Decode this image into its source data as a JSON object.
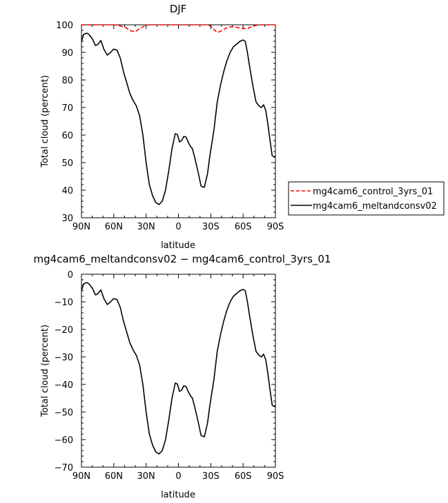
{
  "chart_data": [
    {
      "type": "line",
      "title": "DJF",
      "xlabel": "latitude",
      "ylabel": "Total cloud (percent)",
      "xlim": [
        90,
        -90
      ],
      "ylim": [
        30,
        100
      ],
      "x_tick_values": [
        90,
        60,
        30,
        0,
        -30,
        -60,
        -90
      ],
      "x_tick_labels": [
        "90N",
        "60N",
        "30N",
        "0",
        "30S",
        "60S",
        "90S"
      ],
      "y_ticks": [
        30,
        40,
        50,
        60,
        70,
        80,
        90,
        100
      ],
      "legend_position": "right",
      "series": [
        {
          "name": "mg4cam6_control_3yrs_01",
          "color": "#ff0000",
          "dash": "dashed",
          "x": [
            90,
            60,
            54,
            49,
            44,
            40,
            36,
            30,
            25,
            0,
            -25,
            -30,
            -33,
            -36,
            -40,
            -45,
            -50,
            -55,
            -60,
            -65,
            -70,
            -75,
            -90
          ],
          "y": [
            100,
            100,
            99.6,
            99.0,
            97.8,
            97.5,
            98.6,
            99.9,
            100,
            100,
            100,
            99.6,
            98.3,
            97.2,
            97.8,
            99.0,
            99.3,
            99.0,
            98.6,
            98.8,
            99.6,
            100,
            100
          ]
        },
        {
          "name": "mg4cam6_meltandconsv02",
          "color": "#000000",
          "dash": "solid",
          "x": [
            90,
            88,
            85,
            83,
            80,
            77,
            75,
            72,
            69,
            66,
            63,
            60,
            57,
            54,
            51,
            48,
            45,
            42,
            39,
            36,
            33,
            30,
            27,
            24,
            21,
            18,
            15,
            12,
            9,
            6,
            3,
            1,
            -1,
            -3,
            -5,
            -7,
            -9,
            -11,
            -13,
            -15,
            -18,
            -21,
            -24,
            -27,
            -29,
            -31,
            -33,
            -36,
            -39,
            -42,
            -45,
            -48,
            -51,
            -54,
            -57,
            -60,
            -62,
            -64,
            -66,
            -69,
            -72,
            -75,
            -77,
            -79,
            -81,
            -83,
            -85,
            -87,
            -89,
            -90
          ],
          "y": [
            94.0,
            96.5,
            97.0,
            96.5,
            95.0,
            92.5,
            92.8,
            94.3,
            91.0,
            89.0,
            90.0,
            91.2,
            90.8,
            88.0,
            83.0,
            79.0,
            75.0,
            72.5,
            70.5,
            67.0,
            60.0,
            50.0,
            42.0,
            38.0,
            35.5,
            34.8,
            36.0,
            40.0,
            47.0,
            55.0,
            60.5,
            60.2,
            57.5,
            58.0,
            59.5,
            59.3,
            57.5,
            56.0,
            55.0,
            52.0,
            47.0,
            41.5,
            41.0,
            46.0,
            52.0,
            57.0,
            62.0,
            72.0,
            78.0,
            83.0,
            87.0,
            90.0,
            92.0,
            93.0,
            94.0,
            94.5,
            94.0,
            90.0,
            85.0,
            78.0,
            72.0,
            70.5,
            70.0,
            71.0,
            69.0,
            64.0,
            58.0,
            52.5,
            52.0,
            52.5
          ]
        }
      ]
    },
    {
      "type": "line",
      "title": "mg4cam6_meltandconsv02 − mg4cam6_control_3yrs_01",
      "xlabel": "latitude",
      "ylabel": "Total cloud (percent)",
      "xlim": [
        90,
        -90
      ],
      "ylim": [
        -70,
        0
      ],
      "x_tick_values": [
        90,
        60,
        30,
        0,
        -30,
        -60,
        -90
      ],
      "x_tick_labels": [
        "90N",
        "60N",
        "30N",
        "0",
        "30S",
        "60S",
        "90S"
      ],
      "y_ticks": [
        -70,
        -60,
        -50,
        -40,
        -30,
        -20,
        -10,
        0
      ],
      "series": [
        {
          "color": "#000000",
          "dash": "solid",
          "x": [
            90,
            88,
            85,
            83,
            80,
            77,
            75,
            72,
            69,
            66,
            63,
            60,
            57,
            54,
            51,
            48,
            45,
            42,
            39,
            36,
            33,
            30,
            27,
            24,
            21,
            18,
            15,
            12,
            9,
            6,
            3,
            1,
            -1,
            -3,
            -5,
            -7,
            -9,
            -11,
            -13,
            -15,
            -18,
            -21,
            -24,
            -27,
            -29,
            -31,
            -33,
            -36,
            -39,
            -42,
            -45,
            -48,
            -51,
            -54,
            -57,
            -60,
            -62,
            -64,
            -66,
            -69,
            -72,
            -75,
            -77,
            -79,
            -81,
            -83,
            -85,
            -87,
            -89,
            -90
          ],
          "y": [
            -6.0,
            -3.5,
            -3.0,
            -3.5,
            -5.0,
            -7.5,
            -7.2,
            -5.7,
            -9.0,
            -11.0,
            -10.0,
            -8.8,
            -9.2,
            -12.0,
            -17.0,
            -21.0,
            -25.0,
            -27.5,
            -29.5,
            -33.0,
            -40.0,
            -50.0,
            -58.0,
            -62.0,
            -64.5,
            -65.2,
            -64.0,
            -60.0,
            -53.0,
            -45.0,
            -39.5,
            -39.8,
            -42.5,
            -42.0,
            -40.5,
            -40.7,
            -42.5,
            -44.0,
            -45.0,
            -48.0,
            -53.0,
            -58.5,
            -59.0,
            -54.0,
            -48.0,
            -43.0,
            -38.0,
            -28.0,
            -22.0,
            -17.0,
            -13.0,
            -10.0,
            -8.0,
            -7.0,
            -6.0,
            -5.5,
            -6.0,
            -10.0,
            -15.0,
            -22.0,
            -28.0,
            -29.5,
            -30.0,
            -29.0,
            -31.0,
            -36.0,
            -42.0,
            -47.5,
            -48.0,
            -47.5
          ]
        }
      ]
    }
  ]
}
